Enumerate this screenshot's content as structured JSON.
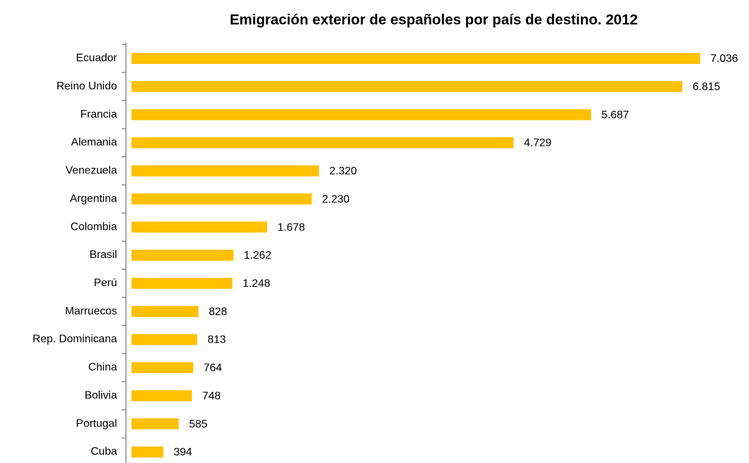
{
  "chart_data": {
    "type": "bar",
    "orientation": "horizontal",
    "title": "Emigración exterior de españoles por país de destino. 2012",
    "categories": [
      "Ecuador",
      "Reino Unido",
      "Francia",
      "Alemania",
      "Venezuela",
      "Argentina",
      "Colombia",
      "Brasil",
      "Perú",
      "Marruecos",
      "Rep. Dominicana",
      "China",
      "Bolivia",
      "Portugal",
      "Cuba"
    ],
    "values": [
      7036,
      6815,
      5687,
      4729,
      2320,
      2230,
      1678,
      1262,
      1248,
      828,
      813,
      764,
      748,
      585,
      394
    ],
    "value_labels": [
      "7.036",
      "6.815",
      "5.687",
      "4.729",
      "2.320",
      "2.230",
      "1.678",
      "1.262",
      "1.248",
      "828",
      "813",
      "764",
      "748",
      "585",
      "394"
    ],
    "color": "#ffc000"
  }
}
